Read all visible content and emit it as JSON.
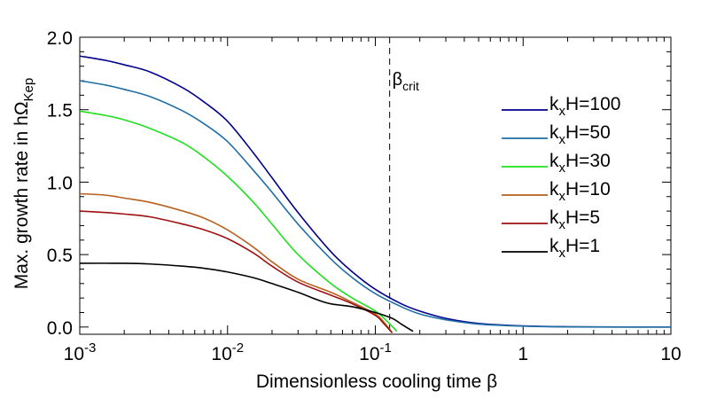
{
  "chart_data": {
    "type": "line",
    "title": "",
    "xlabel": "Dimensionless cooling time β",
    "ylabel": {
      "main": "Max. growth rate in hΩ",
      "sub": "Kep"
    },
    "xscale": "log",
    "xlim": [
      0.001,
      10
    ],
    "ylim": [
      -0.05,
      2.0
    ],
    "x_ticks": [
      {
        "value": 0.001,
        "base": "10",
        "exp": "-3"
      },
      {
        "value": 0.01,
        "base": "10",
        "exp": "-2"
      },
      {
        "value": 0.1,
        "base": "10",
        "exp": "-1"
      },
      {
        "value": 1,
        "base": "1",
        "exp": ""
      },
      {
        "value": 10,
        "base": "10",
        "exp": ""
      }
    ],
    "y_ticks": [
      {
        "value": 0.0,
        "label": "0.0"
      },
      {
        "value": 0.5,
        "label": "0.5"
      },
      {
        "value": 1.0,
        "label": "1.0"
      },
      {
        "value": 1.5,
        "label": "1.5"
      },
      {
        "value": 2.0,
        "label": "2.0"
      }
    ],
    "grid": false,
    "legend_position": "right",
    "annotation": {
      "x": 0.125,
      "text": "β",
      "sub": "crit"
    },
    "series": [
      {
        "name": {
          "k": "k",
          "sub": "x",
          "rest": "H=100"
        },
        "color": "#00008b",
        "points": [
          [
            0.001,
            1.87
          ],
          [
            0.0015,
            1.84
          ],
          [
            0.002,
            1.81
          ],
          [
            0.003,
            1.76
          ],
          [
            0.005,
            1.65
          ],
          [
            0.007,
            1.55
          ],
          [
            0.01,
            1.42
          ],
          [
            0.015,
            1.2
          ],
          [
            0.02,
            1.03
          ],
          [
            0.03,
            0.79
          ],
          [
            0.05,
            0.52
          ],
          [
            0.07,
            0.38
          ],
          [
            0.1,
            0.26
          ],
          [
            0.15,
            0.16
          ],
          [
            0.2,
            0.11
          ],
          [
            0.3,
            0.06
          ],
          [
            0.5,
            0.025
          ],
          [
            1,
            0.008
          ],
          [
            2,
            0.002
          ],
          [
            5,
            0.0
          ],
          [
            10,
            0.0
          ]
        ]
      },
      {
        "name": {
          "k": "k",
          "sub": "x",
          "rest": "H=50"
        },
        "color": "#1f6ea6",
        "points": [
          [
            0.001,
            1.7
          ],
          [
            0.0015,
            1.67
          ],
          [
            0.002,
            1.64
          ],
          [
            0.003,
            1.59
          ],
          [
            0.005,
            1.49
          ],
          [
            0.007,
            1.4
          ],
          [
            0.01,
            1.28
          ],
          [
            0.015,
            1.08
          ],
          [
            0.02,
            0.93
          ],
          [
            0.03,
            0.71
          ],
          [
            0.05,
            0.47
          ],
          [
            0.07,
            0.34
          ],
          [
            0.1,
            0.23
          ],
          [
            0.15,
            0.14
          ],
          [
            0.2,
            0.09
          ],
          [
            0.3,
            0.05
          ],
          [
            0.5,
            0.02
          ],
          [
            1,
            0.006
          ],
          [
            2,
            0.001
          ],
          [
            5,
            0.0
          ],
          [
            10,
            0.0
          ]
        ]
      },
      {
        "name": {
          "k": "k",
          "sub": "x",
          "rest": "H=30"
        },
        "color": "#1ee01e",
        "points": [
          [
            0.001,
            1.49
          ],
          [
            0.0015,
            1.46
          ],
          [
            0.002,
            1.43
          ],
          [
            0.003,
            1.37
          ],
          [
            0.005,
            1.27
          ],
          [
            0.007,
            1.17
          ],
          [
            0.01,
            1.04
          ],
          [
            0.015,
            0.86
          ],
          [
            0.02,
            0.71
          ],
          [
            0.03,
            0.5
          ],
          [
            0.05,
            0.3
          ],
          [
            0.07,
            0.2
          ],
          [
            0.1,
            0.11
          ],
          [
            0.12,
            0.04
          ],
          [
            0.14,
            -0.03
          ]
        ]
      },
      {
        "name": {
          "k": "k",
          "sub": "x",
          "rest": "H=10"
        },
        "color": "#b8601e",
        "points": [
          [
            0.001,
            0.92
          ],
          [
            0.0015,
            0.91
          ],
          [
            0.002,
            0.89
          ],
          [
            0.003,
            0.86
          ],
          [
            0.005,
            0.8
          ],
          [
            0.007,
            0.75
          ],
          [
            0.01,
            0.67
          ],
          [
            0.015,
            0.55
          ],
          [
            0.02,
            0.45
          ],
          [
            0.03,
            0.33
          ],
          [
            0.05,
            0.24
          ],
          [
            0.07,
            0.17
          ],
          [
            0.1,
            0.09
          ],
          [
            0.115,
            0.03
          ],
          [
            0.13,
            -0.04
          ]
        ]
      },
      {
        "name": {
          "k": "k",
          "sub": "x",
          "rest": "H=5"
        },
        "color": "#a01010",
        "points": [
          [
            0.001,
            0.8
          ],
          [
            0.0015,
            0.79
          ],
          [
            0.002,
            0.78
          ],
          [
            0.003,
            0.76
          ],
          [
            0.005,
            0.71
          ],
          [
            0.007,
            0.67
          ],
          [
            0.01,
            0.61
          ],
          [
            0.015,
            0.51
          ],
          [
            0.02,
            0.42
          ],
          [
            0.03,
            0.31
          ],
          [
            0.05,
            0.22
          ],
          [
            0.07,
            0.16
          ],
          [
            0.1,
            0.08
          ],
          [
            0.115,
            0.02
          ],
          [
            0.13,
            -0.04
          ]
        ]
      },
      {
        "name": {
          "k": "k",
          "sub": "x",
          "rest": "H=1"
        },
        "color": "#000000",
        "points": [
          [
            0.001,
            0.44
          ],
          [
            0.002,
            0.44
          ],
          [
            0.003,
            0.435
          ],
          [
            0.005,
            0.42
          ],
          [
            0.007,
            0.405
          ],
          [
            0.01,
            0.38
          ],
          [
            0.015,
            0.34
          ],
          [
            0.02,
            0.3
          ],
          [
            0.03,
            0.24
          ],
          [
            0.04,
            0.19
          ],
          [
            0.05,
            0.16
          ],
          [
            0.07,
            0.14
          ],
          [
            0.1,
            0.1
          ],
          [
            0.13,
            0.06
          ],
          [
            0.15,
            0.02
          ],
          [
            0.18,
            -0.03
          ]
        ]
      }
    ]
  }
}
